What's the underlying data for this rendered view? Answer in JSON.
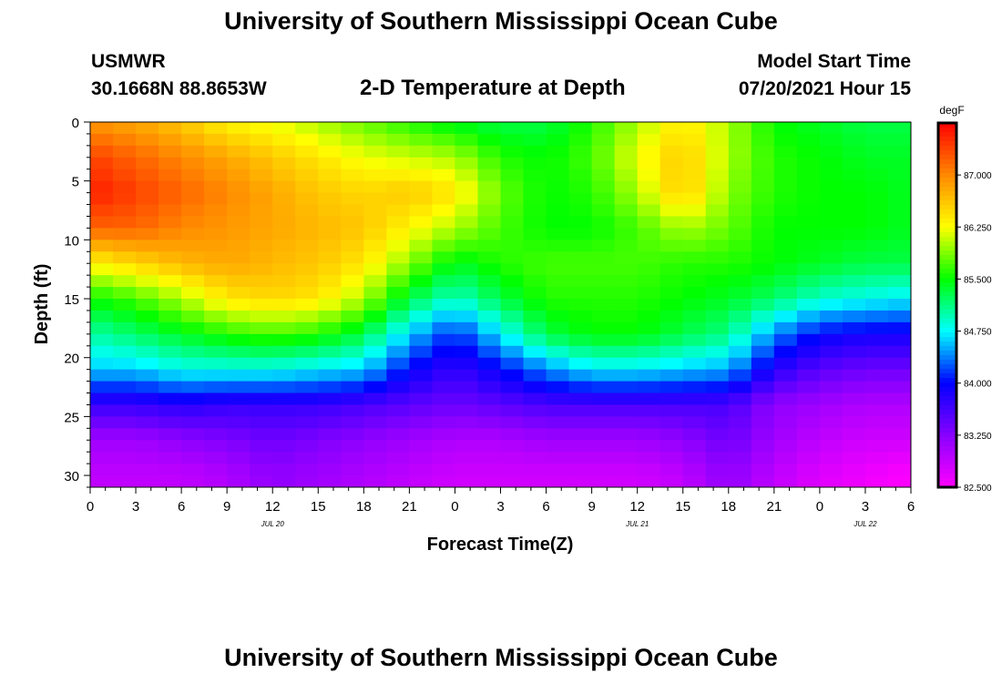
{
  "header": {
    "title": "University of Southern Mississippi Ocean Cube",
    "station": "USMWR",
    "coords": "30.1668N  88.8653W",
    "plot_title": "2-D Temperature at Depth",
    "model_start_label": "Model Start Time",
    "model_start_value": "07/20/2021 Hour 15"
  },
  "footer": {
    "title": "University of Southern Mississippi Ocean Cube"
  },
  "chart_data": {
    "type": "heatmap",
    "title": "2-D Temperature at Depth",
    "xlabel": "Forecast Time(Z)",
    "ylabel": "Depth (ft)",
    "x_ticks": [
      "0",
      "3",
      "6",
      "9",
      "12",
      "15",
      "18",
      "21",
      "0",
      "3",
      "6",
      "9",
      "12",
      "15",
      "18",
      "21",
      "0",
      "3",
      "6"
    ],
    "x_range_hours": [
      0,
      54
    ],
    "date_labels": [
      {
        "text": "JUL 20",
        "hour": 12
      },
      {
        "text": "JUL 21",
        "hour": 36
      },
      {
        "text": "JUL 22",
        "hour": 51
      }
    ],
    "y_ticks": [
      0,
      5,
      10,
      15,
      20,
      25,
      30
    ],
    "y_range": [
      0,
      31
    ],
    "colorbar": {
      "unit": "degF",
      "min": 82.5,
      "max": 87.75,
      "ticks": [
        "87.000",
        "86.250",
        "85.500",
        "84.750",
        "84.000",
        "83.250",
        "82.500"
      ],
      "tick_values": [
        87.0,
        86.25,
        85.5,
        84.75,
        84.0,
        83.25,
        82.5
      ],
      "colors": [
        "#ff00ff",
        "#8800ff",
        "#0000ff",
        "#00ffff",
        "#00ff00",
        "#ffff00",
        "#ff8800",
        "#ff0000"
      ]
    },
    "depth_levels_ft": [
      0,
      3,
      6,
      9,
      12,
      15,
      18,
      21,
      24,
      27,
      30
    ],
    "time_columns_hours": [
      0,
      3,
      6,
      9,
      12,
      15,
      18,
      21,
      24,
      27,
      30,
      33,
      36,
      39,
      42,
      45,
      48,
      51,
      54
    ],
    "values_degF": [
      [
        86.9,
        86.8,
        86.6,
        86.3,
        86.2,
        86.0,
        85.8,
        85.6,
        85.4,
        85.3,
        85.3,
        85.6,
        86.0,
        86.4,
        86.0,
        85.5,
        85.4,
        85.3,
        85.3
      ],
      [
        87.4,
        87.2,
        87.0,
        86.8,
        86.6,
        86.4,
        86.2,
        86.1,
        86.0,
        85.6,
        85.5,
        85.7,
        86.2,
        86.6,
        86.0,
        85.6,
        85.5,
        85.4,
        85.4
      ],
      [
        87.6,
        87.4,
        87.2,
        87.0,
        86.8,
        86.6,
        86.5,
        86.6,
        86.4,
        85.8,
        85.5,
        85.6,
        86.0,
        86.6,
        85.9,
        85.6,
        85.5,
        85.5,
        85.4
      ],
      [
        87.2,
        87.2,
        87.0,
        86.9,
        86.8,
        86.7,
        86.6,
        86.3,
        86.0,
        85.7,
        85.5,
        85.5,
        85.7,
        86.0,
        85.8,
        85.5,
        85.5,
        85.5,
        85.4
      ],
      [
        86.3,
        86.5,
        86.7,
        86.8,
        86.7,
        86.6,
        86.4,
        85.9,
        85.4,
        85.6,
        85.7,
        85.7,
        85.7,
        85.6,
        85.6,
        85.5,
        85.4,
        85.3,
        85.3
      ],
      [
        85.5,
        85.7,
        86.0,
        86.4,
        86.5,
        86.4,
        86.0,
        85.3,
        84.9,
        85.3,
        85.6,
        85.6,
        85.6,
        85.5,
        85.4,
        85.2,
        84.9,
        84.8,
        84.7
      ],
      [
        85.0,
        85.2,
        85.4,
        85.6,
        85.7,
        85.6,
        85.3,
        84.6,
        84.1,
        84.7,
        85.3,
        85.5,
        85.5,
        85.3,
        85.1,
        84.4,
        84.0,
        83.9,
        83.9
      ],
      [
        84.6,
        84.6,
        84.8,
        84.8,
        84.8,
        84.7,
        84.6,
        84.0,
        83.7,
        84.0,
        84.4,
        84.7,
        84.7,
        84.6,
        84.5,
        83.8,
        83.5,
        83.4,
        83.4
      ],
      [
        83.7,
        83.7,
        83.8,
        83.7,
        83.7,
        83.7,
        83.6,
        83.5,
        83.4,
        83.5,
        83.6,
        83.6,
        83.6,
        83.6,
        83.6,
        83.2,
        83.1,
        83.0,
        83.0
      ],
      [
        83.1,
        83.1,
        83.2,
        83.3,
        83.4,
        83.3,
        83.2,
        83.1,
        83.0,
        83.0,
        83.1,
        83.1,
        83.1,
        83.2,
        83.4,
        83.1,
        82.9,
        82.8,
        82.8
      ],
      [
        82.9,
        82.9,
        82.9,
        83.0,
        83.2,
        83.1,
        83.0,
        82.9,
        82.8,
        82.8,
        82.8,
        82.8,
        82.8,
        82.9,
        83.2,
        82.9,
        82.7,
        82.6,
        82.5
      ]
    ]
  }
}
